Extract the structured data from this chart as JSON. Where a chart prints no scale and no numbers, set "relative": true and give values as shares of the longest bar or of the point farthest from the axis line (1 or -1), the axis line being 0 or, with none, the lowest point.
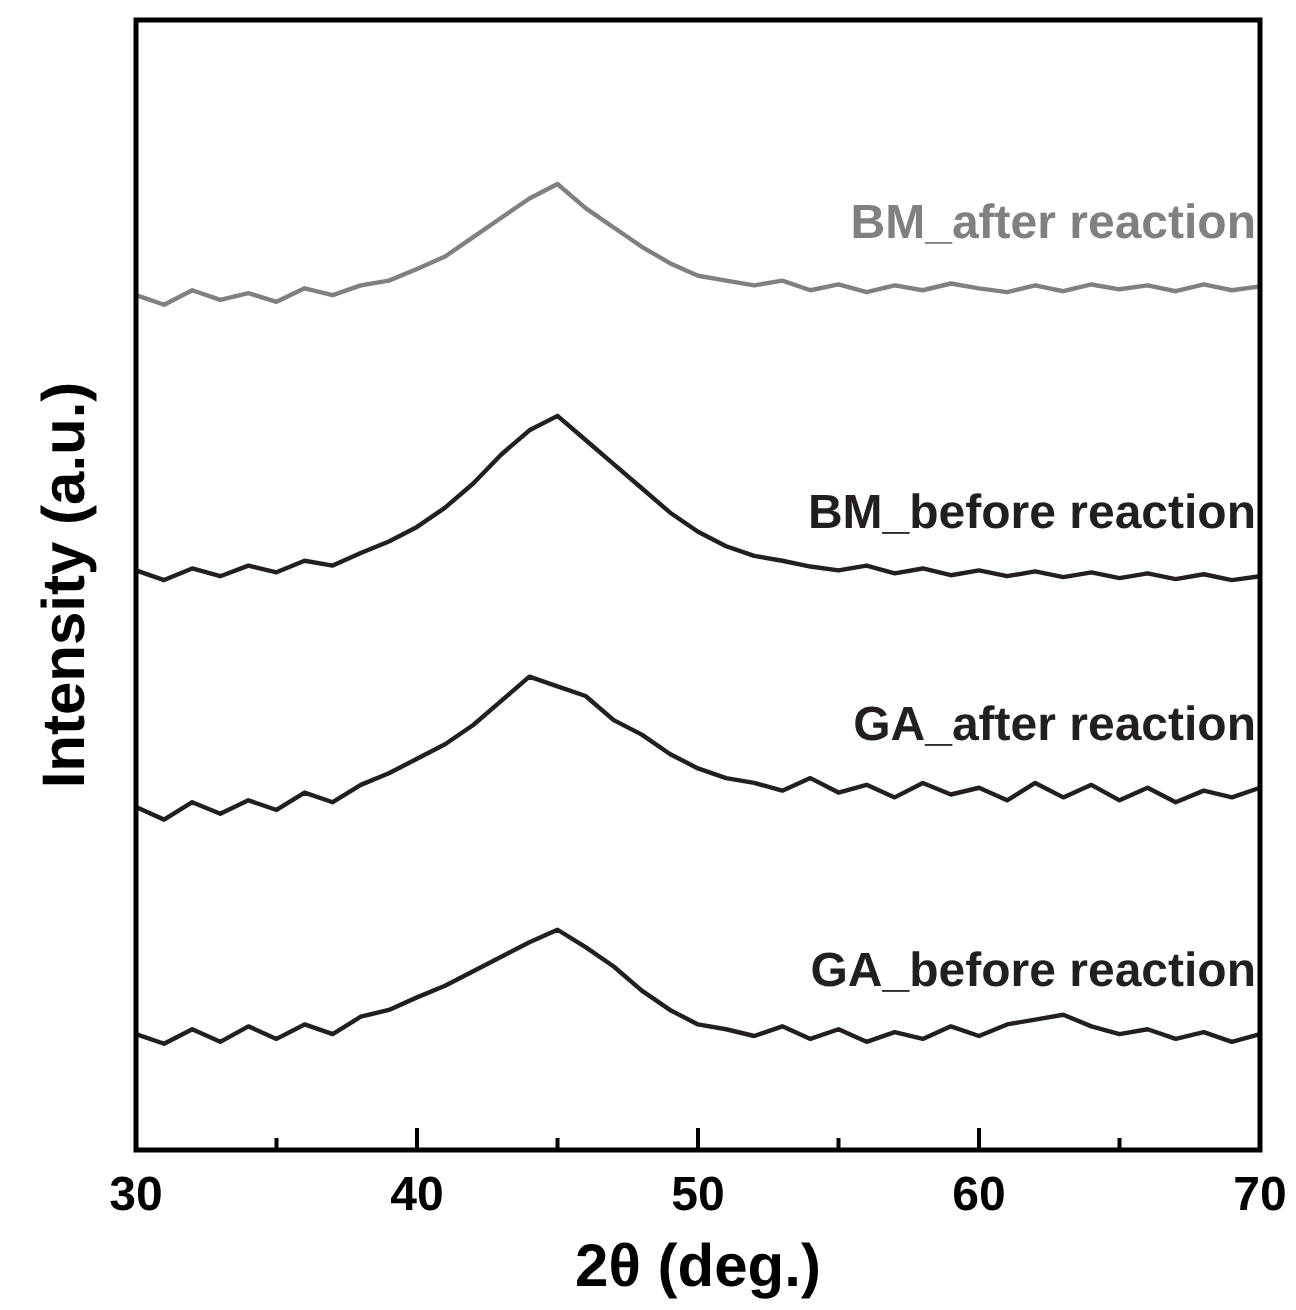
{
  "chart_data": {
    "type": "line",
    "relative": true,
    "xlabel": "2θ (deg.)",
    "ylabel": "Intensity (a.u.)",
    "xlim": [
      30,
      70
    ],
    "xticks": [
      30,
      {
        "value": 35,
        "label": null
      },
      40,
      {
        "value": 45,
        "label": null
      },
      50,
      {
        "value": 55,
        "label": null
      },
      60,
      {
        "value": 65,
        "label": null
      },
      70
    ],
    "tick_labels": "x",
    "grid": false,
    "marker": "none",
    "line_style": "solid",
    "x": [
      30,
      31,
      32,
      33,
      34,
      35,
      36,
      37,
      38,
      39,
      40,
      41,
      42,
      43,
      44,
      45,
      46,
      47,
      48,
      49,
      50,
      51,
      52,
      53,
      54,
      55,
      56,
      57,
      58,
      59,
      60,
      61,
      62,
      63,
      64,
      65,
      66,
      67,
      68,
      69,
      70
    ],
    "series": [
      {
        "name": "BM_after reaction",
        "color": "#808080",
        "values": [
          0.885,
          0.875,
          0.89,
          0.88,
          0.887,
          0.878,
          0.892,
          0.885,
          0.895,
          0.9,
          0.912,
          0.925,
          0.945,
          0.965,
          0.985,
          1.0,
          0.975,
          0.955,
          0.935,
          0.918,
          0.905,
          0.9,
          0.895,
          0.9,
          0.89,
          0.896,
          0.888,
          0.895,
          0.89,
          0.897,
          0.892,
          0.888,
          0.895,
          0.889,
          0.896,
          0.891,
          0.895,
          0.889,
          0.896,
          0.89,
          0.894
        ]
      },
      {
        "name": "BM_before reaction",
        "color": "#231f20",
        "values": [
          0.6,
          0.59,
          0.602,
          0.594,
          0.605,
          0.598,
          0.61,
          0.605,
          0.618,
          0.63,
          0.645,
          0.665,
          0.69,
          0.72,
          0.745,
          0.76,
          0.735,
          0.71,
          0.685,
          0.66,
          0.64,
          0.625,
          0.615,
          0.61,
          0.604,
          0.6,
          0.605,
          0.597,
          0.602,
          0.595,
          0.6,
          0.594,
          0.599,
          0.593,
          0.598,
          0.592,
          0.597,
          0.591,
          0.596,
          0.59,
          0.594
        ]
      },
      {
        "name": "GA_after reaction",
        "color": "#231f20",
        "values": [
          0.355,
          0.342,
          0.36,
          0.348,
          0.362,
          0.352,
          0.37,
          0.36,
          0.378,
          0.39,
          0.405,
          0.42,
          0.44,
          0.465,
          0.49,
          0.48,
          0.47,
          0.445,
          0.43,
          0.41,
          0.395,
          0.385,
          0.38,
          0.372,
          0.385,
          0.37,
          0.378,
          0.365,
          0.38,
          0.368,
          0.375,
          0.362,
          0.38,
          0.365,
          0.378,
          0.362,
          0.375,
          0.36,
          0.372,
          0.365,
          0.375
        ]
      },
      {
        "name": "GA_before reaction",
        "color": "#231f20",
        "values": [
          0.12,
          0.11,
          0.125,
          0.112,
          0.128,
          0.115,
          0.13,
          0.12,
          0.138,
          0.145,
          0.158,
          0.17,
          0.185,
          0.2,
          0.215,
          0.228,
          0.21,
          0.19,
          0.165,
          0.145,
          0.13,
          0.125,
          0.118,
          0.128,
          0.115,
          0.125,
          0.112,
          0.122,
          0.115,
          0.128,
          0.118,
          0.13,
          0.135,
          0.14,
          0.128,
          0.12,
          0.125,
          0.115,
          0.122,
          0.112,
          0.12
        ]
      }
    ]
  }
}
